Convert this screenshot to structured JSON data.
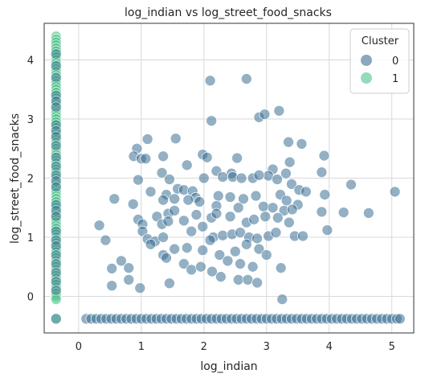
{
  "chart_data": {
    "type": "scatter",
    "title": "log_indian vs log_street_food_snacks",
    "xlabel": "log_indian",
    "ylabel": "log_street_food_snacks",
    "xlim": [
      -0.55,
      5.35
    ],
    "ylim": [
      -0.62,
      4.62
    ],
    "xticks": [
      0,
      1,
      2,
      3,
      4,
      5
    ],
    "yticks": [
      0,
      1,
      2,
      3,
      4
    ],
    "grid": true,
    "legend": {
      "title": "Cluster",
      "placement": "top-right"
    },
    "series": [
      {
        "name": "0",
        "color": "#3b6f93",
        "points": [
          [
            2.1,
            3.65
          ],
          [
            2.68,
            3.68
          ],
          [
            2.12,
            2.97
          ],
          [
            2.88,
            3.03
          ],
          [
            2.97,
            3.08
          ],
          [
            3.2,
            3.14
          ],
          [
            1.1,
            2.66
          ],
          [
            1.55,
            2.67
          ],
          [
            3.35,
            2.61
          ],
          [
            3.56,
            2.58
          ],
          [
            3.92,
            2.38
          ],
          [
            3.37,
            2.27
          ],
          [
            0.93,
            2.5
          ],
          [
            0.88,
            2.37
          ],
          [
            1.0,
            2.33
          ],
          [
            1.07,
            2.33
          ],
          [
            1.35,
            2.37
          ],
          [
            1.98,
            2.4
          ],
          [
            2.05,
            2.35
          ],
          [
            1.73,
            2.22
          ],
          [
            2.53,
            2.34
          ],
          [
            2.2,
            2.12
          ],
          [
            2.44,
            2.08
          ],
          [
            3.1,
            2.15
          ],
          [
            3.31,
            2.08
          ],
          [
            3.03,
            2.04
          ],
          [
            3.88,
            2.1
          ],
          [
            1.33,
            2.09
          ],
          [
            1.45,
            1.98
          ],
          [
            0.95,
            1.97
          ],
          [
            2.0,
            2.0
          ],
          [
            2.3,
            2.02
          ],
          [
            2.46,
            2.02
          ],
          [
            2.6,
            2.0
          ],
          [
            2.78,
            2.0
          ],
          [
            2.88,
            2.05
          ],
          [
            3.17,
            1.98
          ],
          [
            3.4,
            1.9
          ],
          [
            4.35,
            1.89
          ],
          [
            3.52,
            1.8
          ],
          [
            3.63,
            1.77
          ],
          [
            3.93,
            1.72
          ],
          [
            5.05,
            1.77
          ],
          [
            0.57,
            1.65
          ],
          [
            1.15,
            1.77
          ],
          [
            1.4,
            1.72
          ],
          [
            1.58,
            1.82
          ],
          [
            1.68,
            1.8
          ],
          [
            1.82,
            1.78
          ],
          [
            1.87,
            1.67
          ],
          [
            2.23,
            1.7
          ],
          [
            2.42,
            1.68
          ],
          [
            2.63,
            1.65
          ],
          [
            2.83,
            1.7
          ],
          [
            3.22,
            1.72
          ],
          [
            3.32,
            1.62
          ],
          [
            3.5,
            1.55
          ],
          [
            1.35,
            1.63
          ],
          [
            1.53,
            1.65
          ],
          [
            1.75,
            1.63
          ],
          [
            1.93,
            1.6
          ],
          [
            2.2,
            1.53
          ],
          [
            2.55,
            1.5
          ],
          [
            2.95,
            1.52
          ],
          [
            3.1,
            1.5
          ],
          [
            3.28,
            1.45
          ],
          [
            3.41,
            1.47
          ],
          [
            3.88,
            1.43
          ],
          [
            4.23,
            1.42
          ],
          [
            4.63,
            1.41
          ],
          [
            0.87,
            1.56
          ],
          [
            0.95,
            1.3
          ],
          [
            1.02,
            1.22
          ],
          [
            1.25,
            1.35
          ],
          [
            1.43,
            1.4
          ],
          [
            1.53,
            1.45
          ],
          [
            1.88,
            1.38
          ],
          [
            2.12,
            1.33
          ],
          [
            2.2,
            1.4
          ],
          [
            2.42,
            1.35
          ],
          [
            2.68,
            1.25
          ],
          [
            2.8,
            1.3
          ],
          [
            2.98,
            1.35
          ],
          [
            3.18,
            1.33
          ],
          [
            3.36,
            1.25
          ],
          [
            0.33,
            1.2
          ],
          [
            1.02,
            1.1
          ],
          [
            1.1,
            0.97
          ],
          [
            1.22,
            0.93
          ],
          [
            1.33,
            1.22
          ],
          [
            1.43,
            1.27
          ],
          [
            1.68,
            1.28
          ],
          [
            1.8,
            1.1
          ],
          [
            1.98,
            1.18
          ],
          [
            2.15,
            1.0
          ],
          [
            2.3,
            1.03
          ],
          [
            2.45,
            1.05
          ],
          [
            2.58,
            1.08
          ],
          [
            2.72,
            1.0
          ],
          [
            2.85,
            0.98
          ],
          [
            3.03,
            1.02
          ],
          [
            3.15,
            1.08
          ],
          [
            3.45,
            1.02
          ],
          [
            3.58,
            1.02
          ],
          [
            3.97,
            1.12
          ],
          [
            0.43,
            0.95
          ],
          [
            1.15,
            0.88
          ],
          [
            1.35,
            1.0
          ],
          [
            1.53,
            0.8
          ],
          [
            1.73,
            0.82
          ],
          [
            1.98,
            0.78
          ],
          [
            2.1,
            0.95
          ],
          [
            2.25,
            0.7
          ],
          [
            2.5,
            0.76
          ],
          [
            2.68,
            0.88
          ],
          [
            2.88,
            0.8
          ],
          [
            3.0,
            0.7
          ],
          [
            0.53,
            0.47
          ],
          [
            0.68,
            0.6
          ],
          [
            0.8,
            0.48
          ],
          [
            1.35,
            0.7
          ],
          [
            1.4,
            0.65
          ],
          [
            1.68,
            0.55
          ],
          [
            1.8,
            0.45
          ],
          [
            1.95,
            0.5
          ],
          [
            2.13,
            0.42
          ],
          [
            2.38,
            0.6
          ],
          [
            2.58,
            0.55
          ],
          [
            2.78,
            0.5
          ],
          [
            3.23,
            0.48
          ],
          [
            0.53,
            0.18
          ],
          [
            0.8,
            0.28
          ],
          [
            0.98,
            0.14
          ],
          [
            1.45,
            0.22
          ],
          [
            2.27,
            0.33
          ],
          [
            2.55,
            0.28
          ],
          [
            2.7,
            0.28
          ],
          [
            2.85,
            0.23
          ],
          [
            3.25,
            -0.05
          ],
          [
            0.12,
            -0.38
          ],
          [
            0.2,
            -0.38
          ],
          [
            0.28,
            -0.38
          ],
          [
            0.36,
            -0.38
          ],
          [
            0.44,
            -0.38
          ],
          [
            0.52,
            -0.38
          ],
          [
            0.6,
            -0.38
          ],
          [
            0.68,
            -0.38
          ],
          [
            0.76,
            -0.38
          ],
          [
            0.84,
            -0.38
          ],
          [
            0.92,
            -0.38
          ],
          [
            1.0,
            -0.38
          ],
          [
            1.08,
            -0.38
          ],
          [
            1.16,
            -0.38
          ],
          [
            1.24,
            -0.38
          ],
          [
            1.32,
            -0.38
          ],
          [
            1.4,
            -0.38
          ],
          [
            1.48,
            -0.38
          ],
          [
            1.56,
            -0.38
          ],
          [
            1.64,
            -0.38
          ],
          [
            1.72,
            -0.38
          ],
          [
            1.8,
            -0.38
          ],
          [
            1.88,
            -0.38
          ],
          [
            1.96,
            -0.38
          ],
          [
            2.04,
            -0.38
          ],
          [
            2.12,
            -0.38
          ],
          [
            2.2,
            -0.38
          ],
          [
            2.28,
            -0.38
          ],
          [
            2.36,
            -0.38
          ],
          [
            2.44,
            -0.38
          ],
          [
            2.52,
            -0.38
          ],
          [
            2.6,
            -0.38
          ],
          [
            2.68,
            -0.38
          ],
          [
            2.76,
            -0.38
          ],
          [
            2.84,
            -0.38
          ],
          [
            2.92,
            -0.38
          ],
          [
            3.0,
            -0.38
          ],
          [
            3.08,
            -0.38
          ],
          [
            3.16,
            -0.38
          ],
          [
            3.24,
            -0.38
          ],
          [
            3.32,
            -0.38
          ],
          [
            3.4,
            -0.38
          ],
          [
            3.48,
            -0.38
          ],
          [
            3.56,
            -0.38
          ],
          [
            3.64,
            -0.38
          ],
          [
            3.72,
            -0.38
          ],
          [
            3.8,
            -0.38
          ],
          [
            3.88,
            -0.38
          ],
          [
            3.96,
            -0.38
          ],
          [
            4.04,
            -0.38
          ],
          [
            4.12,
            -0.38
          ],
          [
            4.2,
            -0.38
          ],
          [
            4.28,
            -0.38
          ],
          [
            4.36,
            -0.38
          ],
          [
            4.44,
            -0.38
          ],
          [
            4.52,
            -0.38
          ],
          [
            4.6,
            -0.38
          ],
          [
            4.68,
            -0.38
          ],
          [
            4.76,
            -0.38
          ],
          [
            4.84,
            -0.38
          ],
          [
            4.92,
            -0.38
          ],
          [
            5.0,
            -0.38
          ],
          [
            5.08,
            -0.38
          ],
          [
            5.13,
            -0.38
          ]
        ]
      },
      {
        "name": "1",
        "color": "#4cc38a",
        "x_strip": -0.36,
        "ys": [
          4.4,
          4.35,
          4.3,
          4.25,
          4.2,
          4.15,
          4.1,
          4.05,
          4.0,
          3.95,
          3.9,
          3.85,
          3.8,
          3.75,
          3.7,
          3.65,
          3.6,
          3.55,
          3.5,
          3.45,
          3.4,
          3.35,
          3.3,
          3.25,
          3.2,
          3.15,
          3.1,
          3.05,
          3.0,
          2.95,
          2.9,
          2.85,
          2.8,
          2.75,
          2.7,
          2.65,
          2.6,
          2.55,
          2.5,
          2.45,
          2.4,
          2.35,
          2.3,
          2.25,
          2.2,
          2.15,
          2.1,
          2.05,
          2.0,
          1.95,
          1.9,
          1.85,
          1.8,
          1.75,
          1.7,
          1.65,
          1.6,
          1.55,
          1.5,
          1.45,
          1.4,
          1.35,
          1.3,
          1.25,
          1.2,
          1.15,
          1.1,
          1.05,
          1.0,
          0.95,
          0.9,
          0.85,
          0.8,
          0.75,
          0.7,
          0.65,
          0.6,
          0.55,
          0.5,
          0.45,
          0.4,
          0.35,
          0.3,
          0.25,
          0.2,
          0.15,
          0.1,
          0.05,
          0.0,
          -0.05,
          -0.38
        ],
        "dark_overlap_ys": [
          4.1,
          3.9,
          3.7,
          3.4,
          3.3,
          3.2,
          2.9,
          2.8,
          2.7,
          2.55,
          2.35,
          2.2,
          2.05,
          1.95,
          1.85,
          1.55,
          1.45,
          1.35,
          1.1,
          0.95,
          0.85,
          0.7,
          0.55,
          0.4,
          0.25,
          0.1,
          -0.38
        ]
      }
    ]
  }
}
